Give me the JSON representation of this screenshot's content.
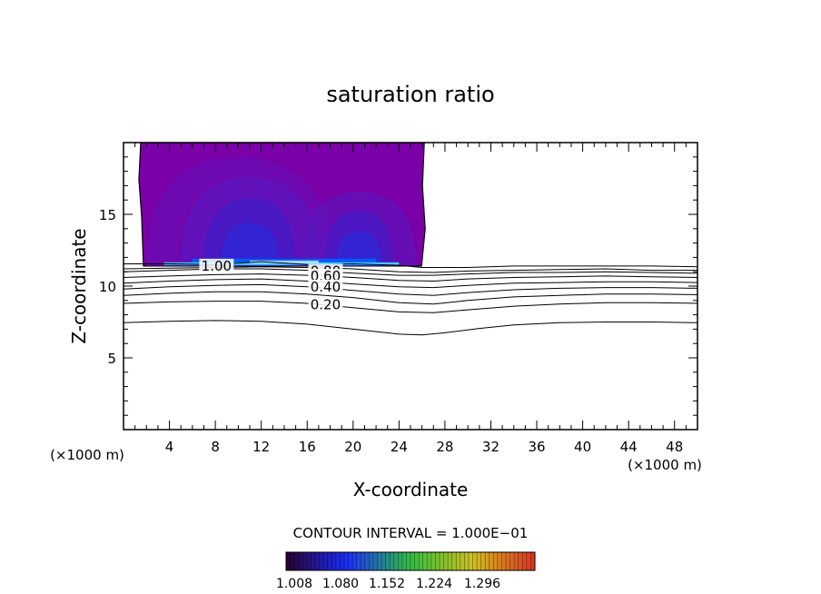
{
  "chart_data": {
    "type": "contour",
    "title": "saturation ratio",
    "xlabel": "X-coordinate",
    "ylabel": "Z-coordinate",
    "x_unit": "(×1000 m)",
    "z_unit": "(×1000 m)",
    "xlim": [
      0,
      50
    ],
    "ylim": [
      0,
      20
    ],
    "x_ticks": [
      4,
      8,
      12,
      16,
      20,
      24,
      28,
      32,
      36,
      40,
      44,
      48
    ],
    "y_ticks": [
      5,
      10,
      15
    ],
    "contour_interval_text": "CONTOUR INTERVAL = 1.000E−01",
    "colorbar_labels": [
      "1.008",
      "1.080",
      "1.152",
      "1.224",
      "1.296"
    ],
    "contour_labels": [
      {
        "text": "1.00",
        "x": 8.1,
        "z": 11.4
      },
      {
        "text": "0.80",
        "x": 17.6,
        "z": 11.05
      },
      {
        "text": "0.60",
        "x": 17.6,
        "z": 10.7
      },
      {
        "text": "0.40",
        "x": 17.6,
        "z": 9.95
      },
      {
        "text": "0.20",
        "x": 17.6,
        "z": 8.7
      }
    ],
    "supersaturated_region": {
      "x_range": [
        1.5,
        26.2
      ],
      "z_range": [
        11.4,
        20
      ]
    },
    "contours": [
      {
        "level": "1.00",
        "points": [
          [
            0,
            11.55
          ],
          [
            4,
            11.55
          ],
          [
            8,
            11.5
          ],
          [
            12,
            11.7
          ],
          [
            16,
            11.5
          ],
          [
            20,
            11.55
          ],
          [
            24,
            11.45
          ],
          [
            26,
            11.3
          ],
          [
            30,
            11.3
          ],
          [
            34,
            11.4
          ],
          [
            38,
            11.4
          ],
          [
            42,
            11.4
          ],
          [
            46,
            11.4
          ],
          [
            50,
            11.35
          ]
        ]
      },
      {
        "level": "0.90",
        "points": [
          [
            0,
            11.2
          ],
          [
            4,
            11.25
          ],
          [
            8,
            11.3
          ],
          [
            12,
            11.35
          ],
          [
            16,
            11.3
          ],
          [
            20,
            11.2
          ],
          [
            24,
            11.0
          ],
          [
            27,
            10.95
          ],
          [
            30,
            11.05
          ],
          [
            34,
            11.1
          ],
          [
            38,
            11.15
          ],
          [
            42,
            11.2
          ],
          [
            46,
            11.1
          ],
          [
            50,
            11.1
          ]
        ]
      },
      {
        "level": "0.80",
        "points": [
          [
            0,
            11.0
          ],
          [
            4,
            11.1
          ],
          [
            8,
            11.2
          ],
          [
            12,
            11.2
          ],
          [
            16,
            11.1
          ],
          [
            20,
            10.9
          ],
          [
            24,
            10.75
          ],
          [
            27,
            10.75
          ],
          [
            30,
            10.85
          ],
          [
            34,
            10.95
          ],
          [
            38,
            10.95
          ],
          [
            42,
            11.0
          ],
          [
            46,
            10.95
          ],
          [
            50,
            10.9
          ]
        ]
      },
      {
        "level": "0.70",
        "points": [
          [
            0,
            10.6
          ],
          [
            4,
            10.7
          ],
          [
            8,
            10.8
          ],
          [
            12,
            10.85
          ],
          [
            16,
            10.75
          ],
          [
            20,
            10.6
          ],
          [
            24,
            10.4
          ],
          [
            27,
            10.35
          ],
          [
            30,
            10.5
          ],
          [
            34,
            10.6
          ],
          [
            38,
            10.65
          ],
          [
            42,
            10.7
          ],
          [
            46,
            10.65
          ],
          [
            50,
            10.6
          ]
        ]
      },
      {
        "level": "0.60",
        "points": [
          [
            0,
            10.2
          ],
          [
            4,
            10.35
          ],
          [
            8,
            10.45
          ],
          [
            12,
            10.5
          ],
          [
            16,
            10.35
          ],
          [
            20,
            10.15
          ],
          [
            24,
            9.95
          ],
          [
            27,
            9.9
          ],
          [
            30,
            10.05
          ],
          [
            34,
            10.2
          ],
          [
            38,
            10.25
          ],
          [
            42,
            10.3
          ],
          [
            46,
            10.3
          ],
          [
            50,
            10.25
          ]
        ]
      },
      {
        "level": "0.50",
        "points": [
          [
            0,
            9.8
          ],
          [
            4,
            9.95
          ],
          [
            8,
            10.05
          ],
          [
            12,
            10.1
          ],
          [
            16,
            9.95
          ],
          [
            20,
            9.7
          ],
          [
            24,
            9.45
          ],
          [
            27,
            9.35
          ],
          [
            30,
            9.55
          ],
          [
            34,
            9.75
          ],
          [
            38,
            9.85
          ],
          [
            42,
            9.9
          ],
          [
            46,
            9.9
          ],
          [
            50,
            9.85
          ]
        ]
      },
      {
        "level": "0.40",
        "points": [
          [
            0,
            9.35
          ],
          [
            4,
            9.5
          ],
          [
            8,
            9.6
          ],
          [
            12,
            9.6
          ],
          [
            16,
            9.45
          ],
          [
            20,
            9.2
          ],
          [
            24,
            8.85
          ],
          [
            27,
            8.75
          ],
          [
            30,
            9.0
          ],
          [
            34,
            9.25
          ],
          [
            38,
            9.35
          ],
          [
            42,
            9.45
          ],
          [
            46,
            9.45
          ],
          [
            50,
            9.4
          ]
        ]
      },
      {
        "level": "0.30",
        "points": [
          [
            0,
            8.8
          ],
          [
            4,
            8.9
          ],
          [
            8,
            8.95
          ],
          [
            12,
            8.95
          ],
          [
            16,
            8.8
          ],
          [
            20,
            8.5
          ],
          [
            24,
            8.2
          ],
          [
            27,
            8.15
          ],
          [
            30,
            8.35
          ],
          [
            34,
            8.6
          ],
          [
            38,
            8.75
          ],
          [
            42,
            8.85
          ],
          [
            46,
            8.85
          ],
          [
            50,
            8.8
          ]
        ]
      },
      {
        "level": "0.20",
        "points": [
          [
            0,
            7.45
          ],
          [
            4,
            7.55
          ],
          [
            8,
            7.6
          ],
          [
            12,
            7.55
          ],
          [
            16,
            7.35
          ],
          [
            20,
            7.0
          ],
          [
            24,
            6.65
          ],
          [
            26,
            6.6
          ],
          [
            28,
            6.75
          ],
          [
            31,
            7.05
          ],
          [
            34,
            7.3
          ],
          [
            38,
            7.45
          ],
          [
            42,
            7.5
          ],
          [
            46,
            7.5
          ],
          [
            50,
            7.45
          ]
        ]
      }
    ],
    "colors": {
      "fill_dark": "#7a00a8",
      "fill_mid": "#3a1ec8",
      "fill_core": "#0060ff",
      "fill_edge": "#40e0ff",
      "colorbar_start": "#2a0030",
      "colorbar_mid_low": "#1a30ff",
      "colorbar_mid": "#30c040",
      "colorbar_mid_high": "#d0c020",
      "colorbar_end": "#e03020"
    }
  }
}
